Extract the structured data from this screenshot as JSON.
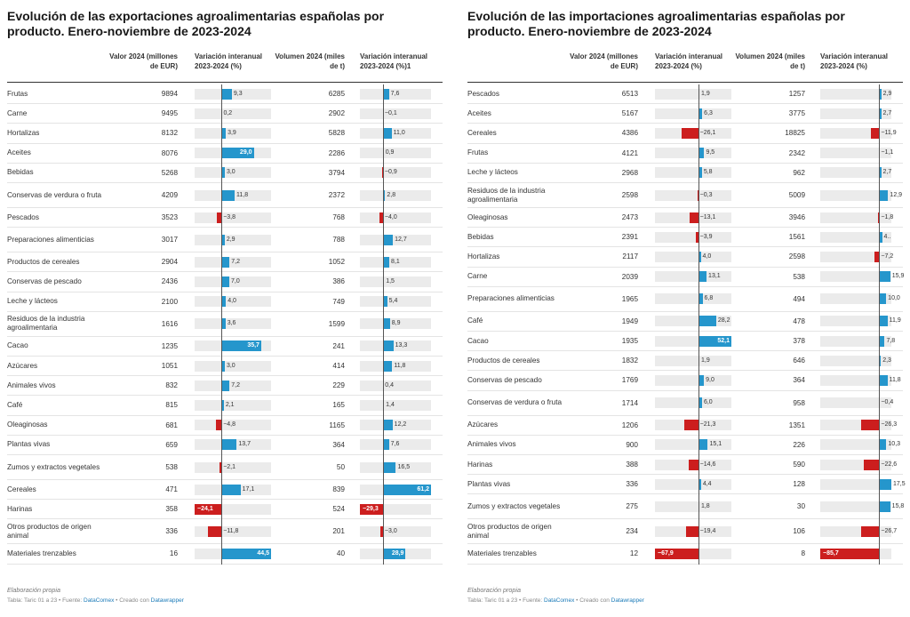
{
  "chart_data": [
    {
      "type": "table",
      "title": "Evolución de las exportaciones agroalimentarias españolas por producto. Enero-noviembre de 2023-2024",
      "columns": [
        "",
        "Valor 2024 (millones de EUR)",
        "Variación interanual 2023-2024 (%)",
        "Volumen 2024 (miles de t)",
        "Variación interanual 2023-2024 (%)1"
      ],
      "rows": [
        {
          "name": "Frutas",
          "valor": "9894",
          "var_valor": 9.3,
          "var_valor_label": "9,3",
          "volumen": "6285",
          "var_volumen": 7.6,
          "var_volumen_label": "7,6"
        },
        {
          "name": "Carne",
          "valor": "9495",
          "var_valor": 0.2,
          "var_valor_label": "0,2",
          "volumen": "2902",
          "var_volumen": -0.1,
          "var_volumen_label": "−0,1"
        },
        {
          "name": "Hortalizas",
          "valor": "8132",
          "var_valor": 3.9,
          "var_valor_label": "3,9",
          "volumen": "5828",
          "var_volumen": 11.0,
          "var_volumen_label": "11,0"
        },
        {
          "name": "Aceites",
          "valor": "8076",
          "var_valor": 29.0,
          "var_valor_label": "29,0",
          "volumen": "2286",
          "var_volumen": 0.9,
          "var_volumen_label": "0,9"
        },
        {
          "name": "Bebidas",
          "valor": "5268",
          "var_valor": 3.0,
          "var_valor_label": "3,0",
          "volumen": "3794",
          "var_volumen": -0.9,
          "var_volumen_label": "−0,9"
        },
        {
          "name": "Conservas de verdura o fruta",
          "valor": "4209",
          "var_valor": 11.8,
          "var_valor_label": "11,8",
          "volumen": "2372",
          "var_volumen": 2.8,
          "var_volumen_label": "2,8"
        },
        {
          "name": "Pescados",
          "valor": "3523",
          "var_valor": -3.8,
          "var_valor_label": "−3,8",
          "volumen": "768",
          "var_volumen": -4.0,
          "var_volumen_label": "−4,0"
        },
        {
          "name": "Preparaciones alimenticias",
          "valor": "3017",
          "var_valor": 2.9,
          "var_valor_label": "2,9",
          "volumen": "788",
          "var_volumen": 12.7,
          "var_volumen_label": "12,7"
        },
        {
          "name": "Productos de cereales",
          "valor": "2904",
          "var_valor": 7.2,
          "var_valor_label": "7,2",
          "volumen": "1052",
          "var_volumen": 8.1,
          "var_volumen_label": "8,1"
        },
        {
          "name": "Conservas de pescado",
          "valor": "2436",
          "var_valor": 7.0,
          "var_valor_label": "7,0",
          "volumen": "386",
          "var_volumen": 1.5,
          "var_volumen_label": "1,5"
        },
        {
          "name": "Leche y lácteos",
          "valor": "2100",
          "var_valor": 4.0,
          "var_valor_label": "4,0",
          "volumen": "749",
          "var_volumen": 5.4,
          "var_volumen_label": "5,4"
        },
        {
          "name": "Residuos de la industria agroalimentaria",
          "valor": "1616",
          "var_valor": 3.6,
          "var_valor_label": "3,6",
          "volumen": "1599",
          "var_volumen": 8.9,
          "var_volumen_label": "8,9"
        },
        {
          "name": "Cacao",
          "valor": "1235",
          "var_valor": 35.7,
          "var_valor_label": "35,7",
          "volumen": "241",
          "var_volumen": 13.3,
          "var_volumen_label": "13,3"
        },
        {
          "name": "Azúcares",
          "valor": "1051",
          "var_valor": 3.0,
          "var_valor_label": "3,0",
          "volumen": "414",
          "var_volumen": 11.8,
          "var_volumen_label": "11,8"
        },
        {
          "name": "Animales vivos",
          "valor": "832",
          "var_valor": 7.2,
          "var_valor_label": "7,2",
          "volumen": "229",
          "var_volumen": 0.4,
          "var_volumen_label": "0,4"
        },
        {
          "name": "Café",
          "valor": "815",
          "var_valor": 2.1,
          "var_valor_label": "2,1",
          "volumen": "165",
          "var_volumen": 1.4,
          "var_volumen_label": "1,4"
        },
        {
          "name": "Oleaginosas",
          "valor": "681",
          "var_valor": -4.8,
          "var_valor_label": "−4,8",
          "volumen": "1165",
          "var_volumen": 12.2,
          "var_volumen_label": "12,2"
        },
        {
          "name": "Plantas vivas",
          "valor": "659",
          "var_valor": 13.7,
          "var_valor_label": "13,7",
          "volumen": "364",
          "var_volumen": 7.6,
          "var_volumen_label": "7,6"
        },
        {
          "name": "Zumos y extractos vegetales",
          "valor": "538",
          "var_valor": -2.1,
          "var_valor_label": "−2,1",
          "volumen": "50",
          "var_volumen": 16.5,
          "var_volumen_label": "16,5"
        },
        {
          "name": "Cereales",
          "valor": "471",
          "var_valor": 17.1,
          "var_valor_label": "17,1",
          "volumen": "839",
          "var_volumen": 61.2,
          "var_volumen_label": "61,2"
        },
        {
          "name": "Harinas",
          "valor": "358",
          "var_valor": -24.1,
          "var_valor_label": "−24,1",
          "volumen": "524",
          "var_volumen": -29.3,
          "var_volumen_label": "−29,3"
        },
        {
          "name": "Otros productos de origen animal",
          "valor": "336",
          "var_valor": -11.8,
          "var_valor_label": "−11,8",
          "volumen": "201",
          "var_volumen": -3.0,
          "var_volumen_label": "−3,0"
        },
        {
          "name": "Materiales trenzables",
          "valor": "16",
          "var_valor": 44.5,
          "var_valor_label": "44,5",
          "volumen": "40",
          "var_volumen": 28.9,
          "var_volumen_label": "28,9"
        }
      ],
      "scale1": [
        -24.1,
        44.5
      ],
      "scale2": [
        -29.3,
        61.2
      ],
      "source_note": "Elaboración propia",
      "source_pre": "Tabla: Taric 01 a 23 • Fuente: ",
      "source_link": "DataComex",
      "source_mid": " • Creado con ",
      "source_tool": "Datawrapper"
    },
    {
      "type": "table",
      "title": "Evolución de las importaciones agroalimentarias españolas por producto. Enero-noviembre de 2023-2024",
      "columns": [
        "",
        "Valor 2024 (millones de EUR)",
        "Variación interanual 2023-2024 (%)",
        "Volumen 2024 (miles de t)",
        "Variación interanual 2023-2024 (%)"
      ],
      "rows": [
        {
          "name": "Pescados",
          "valor": "6513",
          "var_valor": 1.9,
          "var_valor_label": "1,9",
          "volumen": "1257",
          "var_volumen": 2.9,
          "var_volumen_label": "2,9"
        },
        {
          "name": "Aceites",
          "valor": "5167",
          "var_valor": 6.3,
          "var_valor_label": "6,3",
          "volumen": "3775",
          "var_volumen": 2.7,
          "var_volumen_label": "2,7"
        },
        {
          "name": "Cereales",
          "valor": "4386",
          "var_valor": -26.1,
          "var_valor_label": "−26,1",
          "volumen": "18825",
          "var_volumen": -11.9,
          "var_volumen_label": "−11,9"
        },
        {
          "name": "Frutas",
          "valor": "4121",
          "var_valor": 9.5,
          "var_valor_label": "9,5",
          "volumen": "2342",
          "var_volumen": -1.1,
          "var_volumen_label": "−1,1"
        },
        {
          "name": "Leche y lácteos",
          "valor": "2968",
          "var_valor": 5.8,
          "var_valor_label": "5,8",
          "volumen": "962",
          "var_volumen": 2.7,
          "var_volumen_label": "2,7"
        },
        {
          "name": "Residuos de la industria agroalimentaria",
          "valor": "2598",
          "var_valor": -0.3,
          "var_valor_label": "−0,3",
          "volumen": "5009",
          "var_volumen": 12.9,
          "var_volumen_label": "12,9"
        },
        {
          "name": "Oleaginosas",
          "valor": "2473",
          "var_valor": -13.1,
          "var_valor_label": "−13,1",
          "volumen": "3946",
          "var_volumen": -1.8,
          "var_volumen_label": "−1,8"
        },
        {
          "name": "Bebidas",
          "valor": "2391",
          "var_valor": -3.9,
          "var_valor_label": "−3,9",
          "volumen": "1561",
          "var_volumen": 4.0,
          "var_volumen_label": "4.."
        },
        {
          "name": "Hortalizas",
          "valor": "2117",
          "var_valor": 4.0,
          "var_valor_label": "4,0",
          "volumen": "2598",
          "var_volumen": -7.2,
          "var_volumen_label": "−7,2"
        },
        {
          "name": "Carne",
          "valor": "2039",
          "var_valor": 13.1,
          "var_valor_label": "13,1",
          "volumen": "538",
          "var_volumen": 15.9,
          "var_volumen_label": "15,9"
        },
        {
          "name": "Preparaciones alimenticias",
          "valor": "1965",
          "var_valor": 6.8,
          "var_valor_label": "6,8",
          "volumen": "494",
          "var_volumen": 10.0,
          "var_volumen_label": "10,0"
        },
        {
          "name": "Café",
          "valor": "1949",
          "var_valor": 28.2,
          "var_valor_label": "28,2",
          "volumen": "478",
          "var_volumen": 11.9,
          "var_volumen_label": "11,9"
        },
        {
          "name": "Cacao",
          "valor": "1935",
          "var_valor": 52.1,
          "var_valor_label": "52,1",
          "volumen": "378",
          "var_volumen": 7.8,
          "var_volumen_label": "7,8"
        },
        {
          "name": "Productos de cereales",
          "valor": "1832",
          "var_valor": 1.9,
          "var_valor_label": "1,9",
          "volumen": "646",
          "var_volumen": 2.3,
          "var_volumen_label": "2,3"
        },
        {
          "name": "Conservas de pescado",
          "valor": "1769",
          "var_valor": 9.0,
          "var_valor_label": "9,0",
          "volumen": "364",
          "var_volumen": 11.8,
          "var_volumen_label": "11,8"
        },
        {
          "name": "Conservas de verdura o fruta",
          "valor": "1714",
          "var_valor": 6.0,
          "var_valor_label": "6,0",
          "volumen": "958",
          "var_volumen": -0.4,
          "var_volumen_label": "−0,4"
        },
        {
          "name": "Azúcares",
          "valor": "1206",
          "var_valor": -21.3,
          "var_valor_label": "−21,3",
          "volumen": "1351",
          "var_volumen": -26.3,
          "var_volumen_label": "−26,3"
        },
        {
          "name": "Animales vivos",
          "valor": "900",
          "var_valor": 15.1,
          "var_valor_label": "15,1",
          "volumen": "226",
          "var_volumen": 10.3,
          "var_volumen_label": "10,3"
        },
        {
          "name": "Harinas",
          "valor": "388",
          "var_valor": -14.6,
          "var_valor_label": "−14,6",
          "volumen": "590",
          "var_volumen": -22.6,
          "var_volumen_label": "−22,6"
        },
        {
          "name": "Plantas vivas",
          "valor": "336",
          "var_valor": 4.4,
          "var_valor_label": "4,4",
          "volumen": "128",
          "var_volumen": 17.5,
          "var_volumen_label": "17,5"
        },
        {
          "name": "Zumos y extractos vegetales",
          "valor": "275",
          "var_valor": 1.8,
          "var_valor_label": "1,8",
          "volumen": "30",
          "var_volumen": 15.8,
          "var_volumen_label": "15,8"
        },
        {
          "name": "Otros productos de origen animal",
          "valor": "234",
          "var_valor": -19.4,
          "var_valor_label": "−19,4",
          "volumen": "106",
          "var_volumen": -26.7,
          "var_volumen_label": "−26,7"
        },
        {
          "name": "Materiales trenzables",
          "valor": "12",
          "var_valor": -67.9,
          "var_valor_label": "−67,9",
          "volumen": "8",
          "var_volumen": -85.7,
          "var_volumen_label": "−85,7"
        }
      ],
      "scale1": [
        -67.9,
        52.1
      ],
      "scale2": [
        -85.7,
        17.5
      ],
      "source_note": "Elaboración propia",
      "source_pre": "Tabla: Taric 01 a 23 • Fuente: ",
      "source_link": "DataComex",
      "source_mid": " • Creado con ",
      "source_tool": "Datawrapper"
    }
  ],
  "colors": {
    "positive": "#2596cc",
    "negative": "#cc1e1e",
    "bar_track": "#ebebeb"
  }
}
